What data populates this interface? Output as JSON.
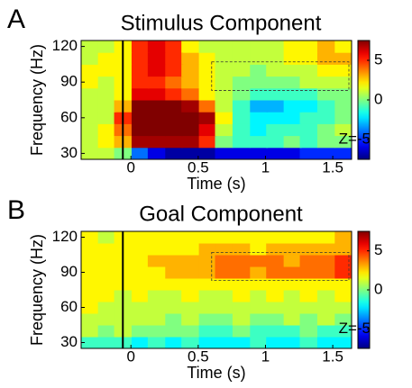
{
  "chart_data": [
    {
      "type": "heatmap",
      "panel_label": "A",
      "title": "Stimulus Component",
      "x_label": "Time (s)",
      "y_label": "Frequency (Hz)",
      "x": [
        -0.31,
        -0.18,
        -0.06,
        0.07,
        0.19,
        0.32,
        0.44,
        0.57,
        0.69,
        0.82,
        0.95,
        1.07,
        1.2,
        1.32,
        1.45,
        1.58
      ],
      "y": [
        30,
        40,
        50,
        60,
        70,
        80,
        90,
        100,
        110,
        120
      ],
      "z": [
        [
          1,
          1,
          0,
          -4,
          -6,
          -7,
          -7,
          -7,
          -6,
          -6,
          -6,
          -6,
          -6,
          -5,
          -5,
          -5
        ],
        [
          1,
          2,
          3,
          7,
          7,
          7,
          7,
          5,
          0,
          -1,
          -1,
          -1,
          0,
          -1,
          0,
          0
        ],
        [
          1,
          2,
          4,
          7.5,
          7.5,
          7.5,
          7.5,
          6,
          1,
          -1,
          -2,
          -1,
          -1,
          -1,
          0,
          1
        ],
        [
          1,
          1,
          5,
          7.5,
          7.5,
          7.5,
          7.5,
          7,
          2,
          -1,
          -2,
          -2,
          -2,
          -1,
          -1,
          0
        ],
        [
          1,
          1,
          3,
          7.5,
          7.5,
          7.5,
          7,
          4,
          1,
          -1,
          -3,
          -3,
          -2,
          -2,
          -1,
          0
        ],
        [
          1,
          1,
          2,
          6,
          6,
          5,
          4,
          2,
          1,
          0,
          -1,
          -1,
          -1,
          -1,
          0,
          0
        ],
        [
          2,
          1,
          2,
          5,
          5,
          4,
          3,
          2,
          1,
          0,
          0,
          0,
          0,
          1,
          1,
          1
        ],
        [
          2,
          2,
          2,
          5,
          6,
          5,
          3,
          2,
          1,
          1,
          0,
          1,
          1,
          1,
          2,
          2
        ],
        [
          1,
          2,
          2,
          5,
          6,
          5,
          3,
          2,
          1,
          1,
          1,
          1,
          2,
          2,
          3,
          3
        ],
        [
          1,
          1,
          2,
          5,
          6,
          5,
          2,
          1,
          1,
          1,
          1,
          1,
          2,
          2,
          3,
          2
        ]
      ],
      "xlim": [
        -0.37,
        1.64
      ],
      "ylim": [
        25,
        125
      ],
      "xticks": [
        0,
        0.5,
        1,
        1.5
      ],
      "yticks": [
        30,
        60,
        90,
        120
      ],
      "clim": [
        -7.5,
        7.5
      ],
      "cticks": [
        5,
        0,
        {
          "value": -5,
          "label": "Z=-5"
        }
      ],
      "vline": -0.06,
      "box": {
        "x": [
          0.6,
          1.62
        ],
        "y": [
          83,
          107
        ]
      }
    },
    {
      "type": "heatmap",
      "panel_label": "B",
      "title": "Goal Component",
      "x_label": "Time (s)",
      "y_label": "Frequency (Hz)",
      "x": [
        -0.31,
        -0.18,
        -0.06,
        0.07,
        0.19,
        0.32,
        0.44,
        0.57,
        0.69,
        0.82,
        0.95,
        1.07,
        1.2,
        1.32,
        1.45,
        1.58
      ],
      "y": [
        30,
        40,
        50,
        60,
        70,
        80,
        90,
        100,
        110,
        120
      ],
      "z": [
        [
          -1,
          -1,
          -1,
          -2,
          -1,
          -2,
          -1,
          -2,
          -2,
          -2,
          -1,
          -2,
          -2,
          -1,
          -2,
          -2
        ],
        [
          1,
          0,
          1,
          0,
          0,
          0,
          0,
          -1,
          -1,
          0,
          -1,
          -1,
          -1,
          0,
          -1,
          -1
        ],
        [
          1,
          1,
          1,
          1,
          1,
          0,
          1,
          0,
          0,
          1,
          0,
          0,
          1,
          0,
          1,
          0
        ],
        [
          2,
          1,
          1,
          1,
          1,
          1,
          1,
          1,
          1,
          1,
          1,
          1,
          1,
          1,
          1,
          1
        ],
        [
          2,
          2,
          1,
          2,
          1,
          1,
          2,
          1,
          1,
          2,
          1,
          2,
          1,
          2,
          1,
          2
        ],
        [
          2,
          2,
          2,
          2,
          2,
          2,
          2,
          2,
          2,
          2,
          2,
          2,
          2,
          2,
          2,
          2
        ],
        [
          2,
          2,
          2,
          2,
          2,
          3,
          3,
          3,
          4,
          4,
          3,
          4,
          4,
          4,
          4,
          5
        ],
        [
          2,
          2,
          2,
          2,
          3,
          3,
          3,
          3,
          4,
          4,
          4,
          4,
          3,
          4,
          4,
          5
        ],
        [
          2,
          2,
          2,
          2,
          2,
          2,
          2,
          3,
          3,
          3,
          2,
          3,
          3,
          3,
          3,
          3
        ],
        [
          2,
          1,
          2,
          2,
          2,
          2,
          2,
          2,
          2,
          2,
          2,
          2,
          2,
          2,
          2,
          3
        ]
      ],
      "xlim": [
        -0.37,
        1.64
      ],
      "ylim": [
        25,
        125
      ],
      "xticks": [
        0,
        0.5,
        1,
        1.5
      ],
      "yticks": [
        30,
        60,
        90,
        120
      ],
      "clim": [
        -7.5,
        7.5
      ],
      "cticks": [
        5,
        0,
        {
          "value": -5,
          "label": "Z=-5"
        }
      ],
      "vline": -0.06,
      "box": {
        "x": [
          0.6,
          1.62
        ],
        "y": [
          83,
          107
        ]
      }
    }
  ]
}
